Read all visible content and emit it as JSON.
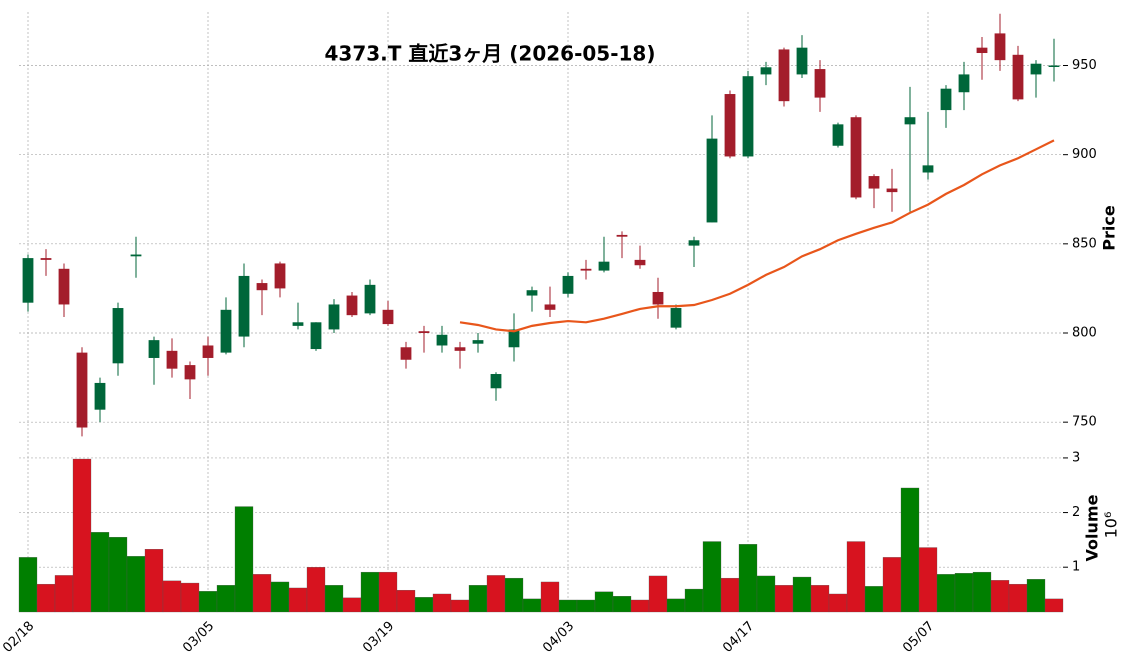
{
  "chart_data": [
    {
      "type": "candlestick",
      "title": "4373.T  直近3ヶ月  (2026-05-18)",
      "ylabel": "Price",
      "open": [
        817,
        842,
        836,
        789,
        757,
        783,
        843,
        786,
        790,
        782,
        793,
        789,
        798,
        828,
        839,
        804,
        791,
        802,
        821,
        811,
        813,
        792,
        801,
        793,
        792,
        794,
        769,
        792,
        821,
        816,
        822,
        836,
        835,
        855,
        841,
        823,
        803,
        849,
        862,
        934,
        899,
        945,
        959,
        945,
        948,
        905,
        921,
        888,
        881,
        917,
        890,
        925,
        935,
        960,
        968,
        956,
        945,
        950
      ],
      "high": [
        844,
        847,
        839,
        792,
        775,
        817,
        854,
        798,
        797,
        784,
        798,
        820,
        839,
        830,
        840,
        817,
        806,
        819,
        823,
        830,
        818,
        795,
        804,
        804,
        795,
        800,
        778,
        811,
        826,
        826,
        834,
        841,
        854,
        857,
        849,
        831,
        816,
        854,
        922,
        936,
        947,
        952,
        960,
        967,
        953,
        918,
        922,
        889,
        892,
        938,
        924,
        939,
        952,
        966,
        979,
        961,
        953,
        965
      ],
      "low": [
        812,
        832,
        809,
        742,
        750,
        776,
        831,
        771,
        775,
        763,
        776,
        788,
        792,
        810,
        820,
        802,
        790,
        800,
        809,
        810,
        804,
        780,
        789,
        789,
        780,
        789,
        762,
        784,
        812,
        809,
        820,
        830,
        834,
        842,
        836,
        808,
        802,
        837,
        862,
        898,
        898,
        939,
        927,
        943,
        924,
        904,
        875,
        870,
        868,
        868,
        886,
        915,
        925,
        942,
        947,
        930,
        932,
        941
      ],
      "close": [
        842,
        841,
        816,
        747,
        772,
        814,
        844,
        796,
        780,
        774,
        786,
        813,
        832,
        824,
        825,
        806,
        806,
        816,
        810,
        827,
        805,
        785,
        800,
        799,
        790,
        796,
        777,
        802,
        824,
        813,
        832,
        835,
        840,
        854,
        838,
        816,
        814,
        852,
        909,
        899,
        944,
        949,
        930,
        960,
        932,
        917,
        876,
        881,
        879,
        921,
        894,
        937,
        945,
        957,
        953,
        931,
        951,
        950
      ],
      "up_color": "#00663a",
      "down_color": "#a31d2b",
      "moving_average": {
        "color": "#e8561b",
        "values": [
          null,
          null,
          null,
          null,
          null,
          null,
          null,
          null,
          null,
          null,
          null,
          null,
          null,
          null,
          null,
          null,
          null,
          null,
          null,
          null,
          null,
          null,
          null,
          null,
          806,
          804.5,
          802,
          801,
          804,
          805.6,
          806.7,
          806,
          808,
          810.7,
          813.5,
          815,
          815,
          815.7,
          818.5,
          822,
          827,
          832.6,
          837,
          843,
          847,
          852,
          855.6,
          859,
          862,
          867.4,
          872,
          878,
          883,
          889,
          894,
          898,
          903,
          908
        ]
      },
      "ylim": [
        740,
        980
      ],
      "yticks": [
        750,
        800,
        850,
        900,
        950
      ],
      "grid": true
    },
    {
      "type": "bar",
      "ylabel": "Volume",
      "offset_label": "10⁶",
      "categories": [
        "02/18",
        null,
        null,
        null,
        null,
        null,
        null,
        null,
        null,
        null,
        "03/05",
        null,
        null,
        null,
        null,
        null,
        null,
        null,
        null,
        null,
        "03/19",
        null,
        null,
        null,
        null,
        null,
        null,
        null,
        null,
        null,
        "04/03",
        null,
        null,
        null,
        null,
        null,
        null,
        null,
        null,
        null,
        "04/17",
        null,
        null,
        null,
        null,
        null,
        null,
        null,
        null,
        null,
        "05/07",
        null,
        null,
        null,
        null,
        null,
        null,
        null
      ],
      "values": [
        1.18,
        0.69,
        0.85,
        2.98,
        1.64,
        1.55,
        1.2,
        1.33,
        0.75,
        0.71,
        0.56,
        0.67,
        2.11,
        0.87,
        0.73,
        0.62,
        1.0,
        0.67,
        0.44,
        0.91,
        0.91,
        0.58,
        0.45,
        0.51,
        0.4,
        0.67,
        0.85,
        0.8,
        0.42,
        0.73,
        0.4,
        0.4,
        0.55,
        0.47,
        0.4,
        0.84,
        0.42,
        0.6,
        1.47,
        0.8,
        1.42,
        0.84,
        0.67,
        0.82,
        0.67,
        0.51,
        1.47,
        0.65,
        1.18,
        2.45,
        1.36,
        0.87,
        0.89,
        0.91,
        0.76,
        0.69,
        0.78,
        0.42
      ],
      "colors": [
        "#007f00",
        "#d7131f",
        "#d7131f",
        "#d7131f",
        "#007f00",
        "#007f00",
        "#007f00",
        "#d7131f",
        "#d7131f",
        "#d7131f",
        "#007f00",
        "#007f00",
        "#007f00",
        "#d7131f",
        "#007f00",
        "#d7131f",
        "#d7131f",
        "#007f00",
        "#d7131f",
        "#007f00",
        "#d7131f",
        "#d7131f",
        "#007f00",
        "#d7131f",
        "#d7131f",
        "#007f00",
        "#d7131f",
        "#007f00",
        "#007f00",
        "#d7131f",
        "#007f00",
        "#007f00",
        "#007f00",
        "#007f00",
        "#d7131f",
        "#d7131f",
        "#007f00",
        "#007f00",
        "#007f00",
        "#d7131f",
        "#007f00",
        "#007f00",
        "#d7131f",
        "#007f00",
        "#d7131f",
        "#d7131f",
        "#d7131f",
        "#007f00",
        "#d7131f",
        "#007f00",
        "#d7131f",
        "#007f00",
        "#007f00",
        "#007f00",
        "#d7131f",
        "#d7131f",
        "#007f00",
        "#d7131f"
      ],
      "ylim": [
        0.18,
        3.2
      ],
      "yticks": [
        1,
        2,
        3
      ],
      "grid": true
    }
  ]
}
